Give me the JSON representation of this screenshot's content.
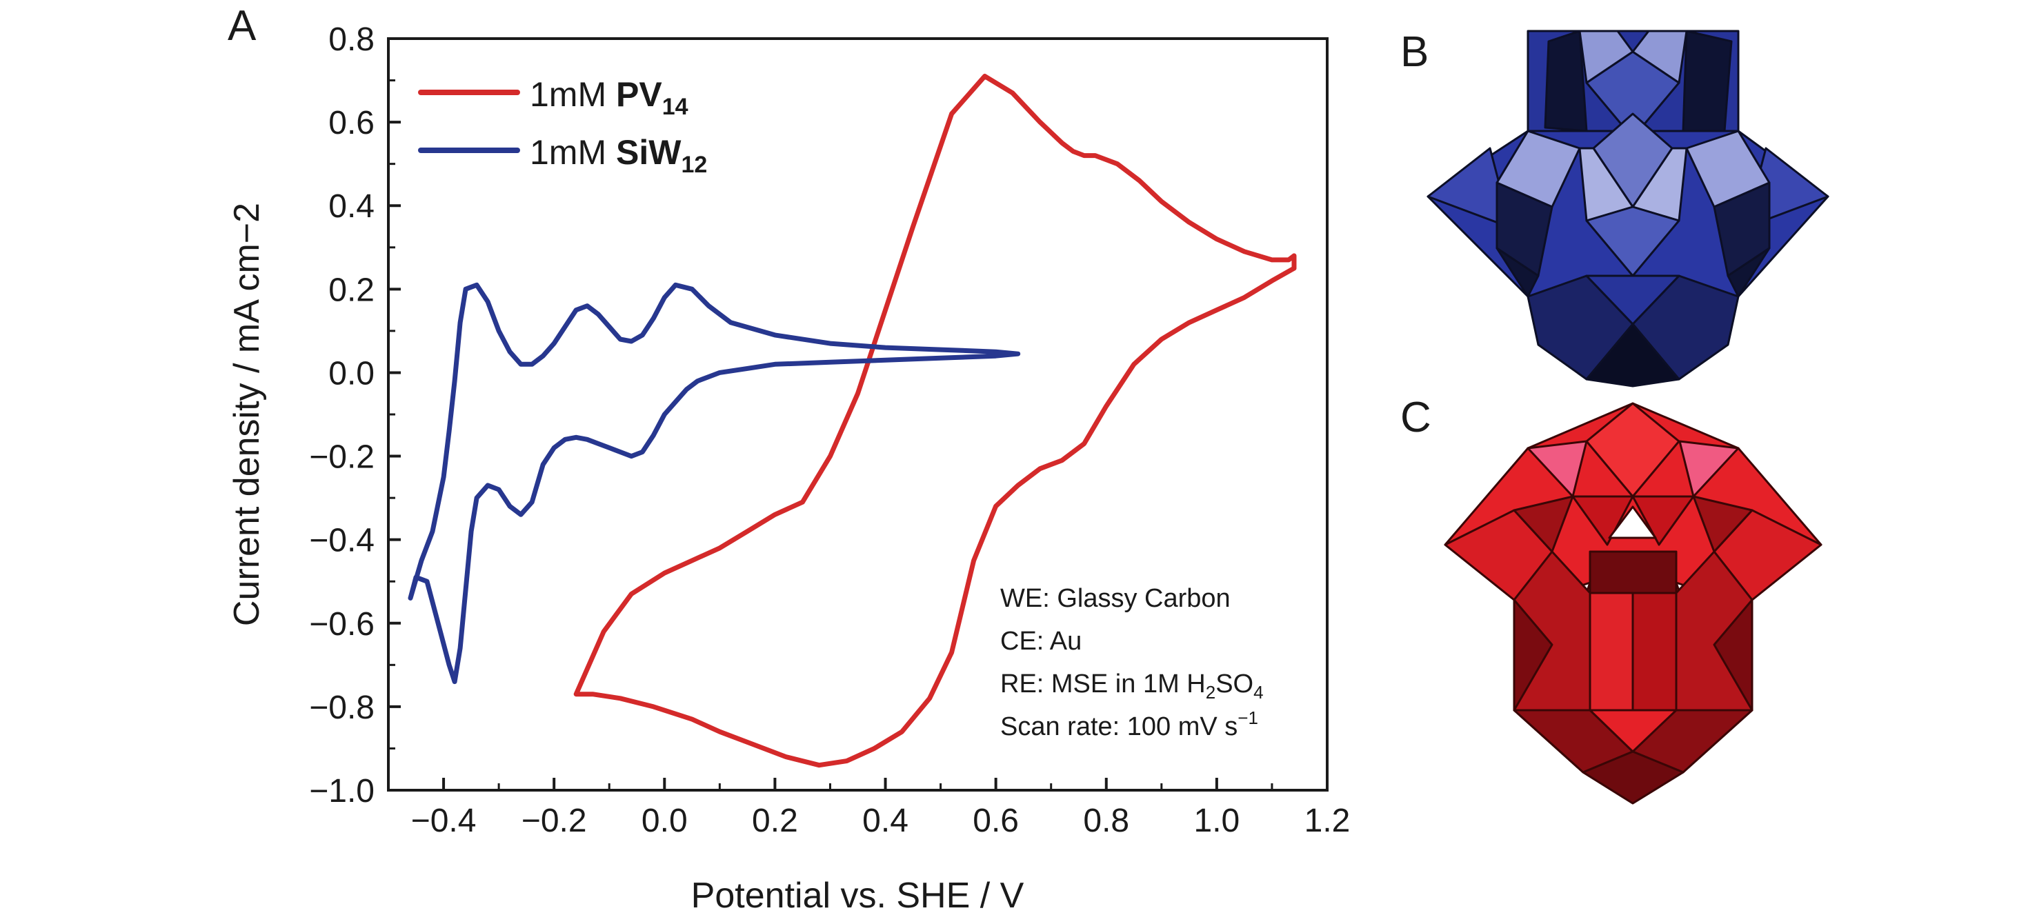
{
  "panels": {
    "a": "A",
    "b": "B",
    "c": "C"
  },
  "chart_data": {
    "type": "line",
    "title": "",
    "xlabel": "Potential vs. SHE / V",
    "ylabel": "Current density / mA cm−2",
    "xlim": [
      -0.5,
      1.2
    ],
    "ylim": [
      -1.0,
      0.8
    ],
    "xticks": [
      -0.4,
      -0.2,
      0.0,
      0.2,
      0.4,
      0.6,
      0.8,
      1.0,
      1.2
    ],
    "xtick_labels": [
      "−0.4",
      "−0.2",
      "0.0",
      "0.2",
      "0.4",
      "0.6",
      "0.8",
      "1.0",
      "1.2"
    ],
    "yticks": [
      -1.0,
      -0.8,
      -0.6,
      -0.4,
      -0.2,
      0.0,
      0.2,
      0.4,
      0.6,
      0.8
    ],
    "ytick_labels": [
      "−1.0",
      "−0.8",
      "−0.6",
      "−0.4",
      "−0.2",
      "0.0",
      "0.2",
      "0.4",
      "0.6",
      "0.8"
    ],
    "grid": false,
    "legend_position": "top-left",
    "series": [
      {
        "name": "1mM PV14",
        "label_prefix": "1mM ",
        "label_main": "PV",
        "label_sub": "14",
        "color": "#d42a2a",
        "x": [
          -0.16,
          -0.13,
          -0.08,
          -0.02,
          0.05,
          0.1,
          0.16,
          0.22,
          0.28,
          0.33,
          0.38,
          0.43,
          0.48,
          0.52,
          0.56,
          0.6,
          0.64,
          0.68,
          0.72,
          0.76,
          0.8,
          0.85,
          0.9,
          0.95,
          1.0,
          1.05,
          1.1,
          1.14,
          1.14,
          1.13,
          1.1,
          1.05,
          1.0,
          0.95,
          0.9,
          0.86,
          0.82,
          0.8,
          0.78,
          0.76,
          0.74,
          0.72,
          0.68,
          0.63,
          0.58,
          0.52,
          0.45,
          0.4,
          0.35,
          0.3,
          0.25,
          0.2,
          0.15,
          0.1,
          0.05,
          0.0,
          -0.06,
          -0.11,
          -0.16
        ],
        "y": [
          -0.77,
          -0.77,
          -0.78,
          -0.8,
          -0.83,
          -0.86,
          -0.89,
          -0.92,
          -0.94,
          -0.93,
          -0.9,
          -0.86,
          -0.78,
          -0.67,
          -0.45,
          -0.32,
          -0.27,
          -0.23,
          -0.21,
          -0.17,
          -0.08,
          0.02,
          0.08,
          0.12,
          0.15,
          0.18,
          0.22,
          0.25,
          0.28,
          0.27,
          0.27,
          0.29,
          0.32,
          0.36,
          0.41,
          0.46,
          0.5,
          0.51,
          0.52,
          0.52,
          0.53,
          0.55,
          0.6,
          0.67,
          0.71,
          0.62,
          0.35,
          0.15,
          -0.05,
          -0.2,
          -0.31,
          -0.34,
          -0.38,
          -0.42,
          -0.45,
          -0.48,
          -0.53,
          -0.62,
          -0.77
        ]
      },
      {
        "name": "1mM SiW12",
        "label_prefix": "1mM ",
        "label_main": "SiW",
        "label_sub": "12",
        "color": "#27378f",
        "x": [
          -0.46,
          -0.45,
          -0.43,
          -0.41,
          -0.39,
          -0.38,
          -0.37,
          -0.36,
          -0.35,
          -0.34,
          -0.32,
          -0.3,
          -0.28,
          -0.26,
          -0.24,
          -0.22,
          -0.2,
          -0.18,
          -0.16,
          -0.14,
          -0.12,
          -0.1,
          -0.08,
          -0.06,
          -0.04,
          -0.02,
          0.0,
          0.02,
          0.04,
          0.06,
          0.08,
          0.1,
          0.15,
          0.2,
          0.3,
          0.4,
          0.5,
          0.6,
          0.64,
          0.6,
          0.5,
          0.4,
          0.3,
          0.2,
          0.12,
          0.08,
          0.05,
          0.02,
          0.0,
          -0.02,
          -0.04,
          -0.06,
          -0.08,
          -0.1,
          -0.12,
          -0.14,
          -0.16,
          -0.18,
          -0.2,
          -0.22,
          -0.24,
          -0.26,
          -0.28,
          -0.3,
          -0.32,
          -0.34,
          -0.36,
          -0.37,
          -0.38,
          -0.39,
          -0.4,
          -0.42,
          -0.44,
          -0.46
        ],
        "y": [
          -0.54,
          -0.49,
          -0.5,
          -0.6,
          -0.7,
          -0.74,
          -0.66,
          -0.52,
          -0.38,
          -0.3,
          -0.27,
          -0.28,
          -0.32,
          -0.34,
          -0.31,
          -0.22,
          -0.18,
          -0.16,
          -0.155,
          -0.16,
          -0.17,
          -0.18,
          -0.19,
          -0.2,
          -0.19,
          -0.15,
          -0.1,
          -0.07,
          -0.04,
          -0.02,
          -0.01,
          0.0,
          0.01,
          0.02,
          0.025,
          0.03,
          0.035,
          0.04,
          0.045,
          0.05,
          0.055,
          0.06,
          0.07,
          0.09,
          0.12,
          0.16,
          0.2,
          0.21,
          0.18,
          0.13,
          0.09,
          0.075,
          0.08,
          0.11,
          0.14,
          0.16,
          0.15,
          0.11,
          0.07,
          0.04,
          0.02,
          0.02,
          0.05,
          0.1,
          0.17,
          0.21,
          0.2,
          0.12,
          -0.02,
          -0.14,
          -0.25,
          -0.38,
          -0.45,
          -0.54
        ]
      }
    ],
    "annotations": [
      {
        "text": "WE: Glassy Carbon"
      },
      {
        "text": "CE: Au"
      },
      {
        "text_prefix": "RE: MSE in 1M H",
        "sub1": "2",
        "mid": "SO",
        "sub2": "4"
      },
      {
        "text_prefix": "Scan rate: 100 mV s",
        "sup": "−1"
      }
    ]
  }
}
